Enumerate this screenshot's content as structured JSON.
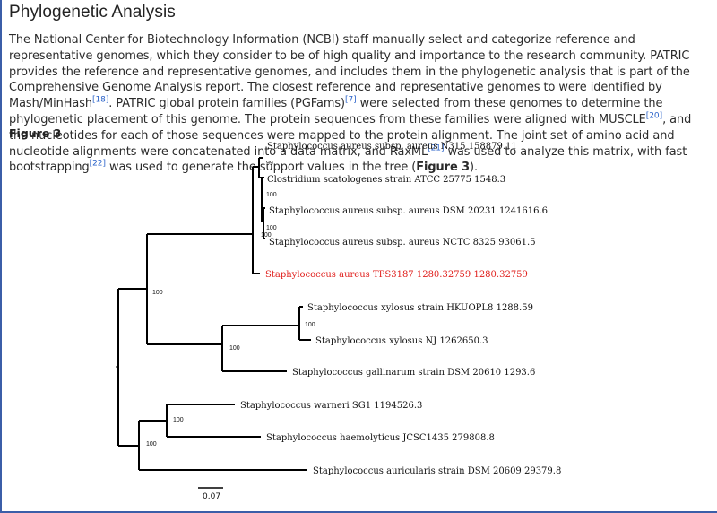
{
  "section": {
    "title": "Phylogenetic Analysis"
  },
  "paragraph": {
    "p1": "The National Center for Biotechnology Information (NCBI) staff manually select and categorize reference and representative genomes, which they consider to be of high quality and importance to the research community. PATRIC provides the reference and representative genomes, and includes them in the phylogenetic analysis that is part of the Comprehensive Genome Analysis report. The closest reference and representative genomes to were identified by Mash/MinHash",
    "ref18": "[18]",
    "p2": ". PATRIC global protein families (PGFams)",
    "ref7": "[7]",
    "p3": " were selected from these genomes to determine the phylogenetic placement of this genome. The protein sequences from these families were aligned with MUSCLE",
    "ref20": "[20]",
    "p4": ", and the nucleotides for each of those sequences were mapped to the protein alignment. The joint set of amino acid and nucleotide alignments were concatenated into a data matrix, and RaxML",
    "ref21": "[21]",
    "p5": " was used to analyze this matrix, with fast bootstrapping",
    "ref22": "[22]",
    "p6": " was used to generate the support values in the tree (",
    "fig_ref": "Figure 3",
    "p7": ")."
  },
  "figure": {
    "label": "Figure 3",
    "leaves": [
      "Staphylococcus aureus subsp. aureus N315 158879.11",
      "Clostridium scatologenes strain ATCC 25775 1548.3",
      "Staphylococcus aureus subsp. aureus DSM 20231 1241616.6",
      "Staphylococcus aureus subsp. aureus NCTC 8325 93061.5",
      "Staphylococcus aureus TPS3187 1280.32759 1280.32759",
      "Staphylococcus xylosus strain HKUOPL8 1288.59",
      "Staphylococcus xylosus NJ 1262650.3",
      "Staphylococcus gallinarum strain DSM 20610 1293.6",
      "Staphylococcus warneri SG1 1194526.3",
      "Staphylococcus haemolyticus JCSC1435 279808.8",
      "Staphylococcus auricularis strain DSM 20609 29379.8"
    ],
    "bootstrap": [
      "99",
      "100",
      "100",
      "100",
      "100",
      "100",
      "100",
      "100"
    ],
    "scale_bar": "0.07",
    "highlight_color": "#e0201d"
  }
}
